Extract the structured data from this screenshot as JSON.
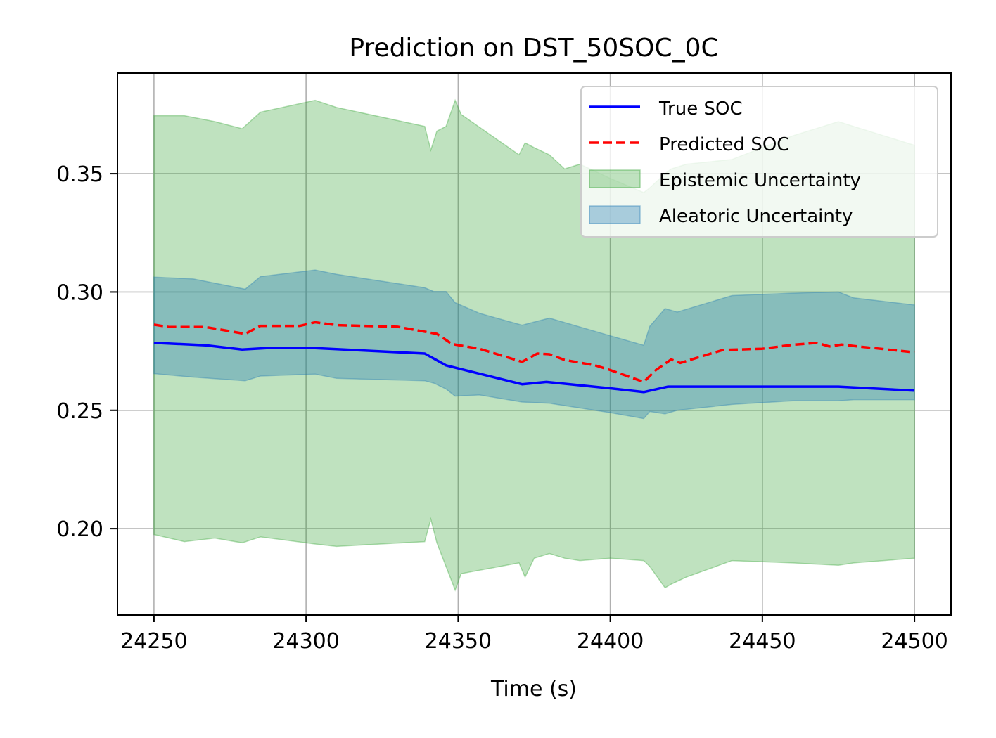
{
  "chart_data": {
    "type": "line",
    "title": "Prediction on DST_50SOC_0C",
    "xlabel": "Time (s)",
    "ylabel": "",
    "xlim": [
      24238,
      24512
    ],
    "ylim": [
      0.1635,
      0.3925
    ],
    "xticks": [
      24250,
      24300,
      24350,
      24400,
      24450,
      24500
    ],
    "xtick_labels": [
      "24250",
      "24300",
      "24350",
      "24400",
      "24450",
      "24500"
    ],
    "yticks": [
      0.2,
      0.25,
      0.3,
      0.35
    ],
    "ytick_labels": [
      "0.20",
      "0.25",
      "0.30",
      "0.35"
    ],
    "grid": true,
    "legend_position": "top-right",
    "colors": {
      "true": "#0000ff",
      "predicted": "#ff0000",
      "epistemic_fill": "#2ca02c",
      "aleatoric_fill": "#1f77b4"
    },
    "series": [
      {
        "name": "True SOC",
        "style": "solid",
        "x": [
          24250,
          24267,
          24279,
          24287,
          24303,
          24339,
          24346,
          24371,
          24379,
          24400,
          24411,
          24419,
          24475,
          24500
        ],
        "y": [
          0.2785,
          0.2775,
          0.2757,
          0.2763,
          0.2763,
          0.274,
          0.269,
          0.261,
          0.262,
          0.2593,
          0.2577,
          0.26,
          0.26,
          0.2583
        ]
      },
      {
        "name": "Predicted SOC",
        "style": "dashed",
        "x": [
          24250,
          24255,
          24267,
          24280,
          24285,
          24290,
          24298,
          24303,
          24310,
          24330,
          24343,
          24348,
          24357,
          24371,
          24376,
          24380,
          24385,
          24395,
          24400,
          24411,
          24415,
          24420,
          24423,
          24428,
          24437,
          24450,
          24460,
          24468,
          24472,
          24476,
          24480,
          24500
        ],
        "y": [
          0.2862,
          0.2852,
          0.2852,
          0.2823,
          0.2857,
          0.2857,
          0.2857,
          0.2872,
          0.286,
          0.2853,
          0.2823,
          0.278,
          0.276,
          0.2705,
          0.274,
          0.2737,
          0.2713,
          0.269,
          0.267,
          0.262,
          0.267,
          0.2715,
          0.27,
          0.272,
          0.2755,
          0.276,
          0.2777,
          0.2785,
          0.277,
          0.2778,
          0.2772,
          0.2745
        ]
      },
      {
        "name": "Epistemic Uncertainty",
        "style": "band",
        "x": [
          24250,
          24260,
          24270,
          24279,
          24285,
          24303,
          24310,
          24339,
          24341,
          24343,
          24346,
          24349,
          24351,
          24370,
          24372,
          24375,
          24380,
          24385,
          24390,
          24400,
          24411,
          24413,
          24418,
          24420,
          24425,
          24440,
          24460,
          24475,
          24480,
          24500
        ],
        "upper": [
          0.3745,
          0.3745,
          0.372,
          0.369,
          0.376,
          0.381,
          0.378,
          0.37,
          0.36,
          0.368,
          0.37,
          0.381,
          0.375,
          0.358,
          0.363,
          0.361,
          0.358,
          0.352,
          0.354,
          0.348,
          0.342,
          0.344,
          0.35,
          0.352,
          0.354,
          0.356,
          0.366,
          0.372,
          0.37,
          0.362
        ],
        "lower": [
          0.1975,
          0.1945,
          0.196,
          0.194,
          0.1965,
          0.1935,
          0.1925,
          0.1945,
          0.204,
          0.194,
          0.184,
          0.174,
          0.181,
          0.1855,
          0.1795,
          0.1875,
          0.1895,
          0.1875,
          0.1865,
          0.1875,
          0.1865,
          0.184,
          0.175,
          0.1765,
          0.1795,
          0.1865,
          0.1855,
          0.1845,
          0.1855,
          0.1875
        ]
      },
      {
        "name": "Aleatoric Uncertainty",
        "style": "band",
        "x": [
          24250,
          24263,
          24280,
          24285,
          24303,
          24310,
          24339,
          24342,
          24346,
          24349,
          24357,
          24371,
          24380,
          24400,
          24411,
          24413,
          24418,
          24422,
          24440,
          24460,
          24475,
          24480,
          24500
        ],
        "upper": [
          0.3063,
          0.3055,
          0.3012,
          0.3065,
          0.3093,
          0.3075,
          0.3018,
          0.3002,
          0.3002,
          0.2955,
          0.291,
          0.286,
          0.289,
          0.2815,
          0.2775,
          0.2855,
          0.293,
          0.2915,
          0.2985,
          0.2995,
          0.3,
          0.2975,
          0.2945
        ],
        "lower": [
          0.2655,
          0.264,
          0.2625,
          0.2645,
          0.2653,
          0.2635,
          0.2625,
          0.2615,
          0.259,
          0.256,
          0.2565,
          0.2535,
          0.253,
          0.249,
          0.2465,
          0.2495,
          0.2485,
          0.25,
          0.2525,
          0.254,
          0.254,
          0.2545,
          0.2545
        ]
      }
    ]
  }
}
